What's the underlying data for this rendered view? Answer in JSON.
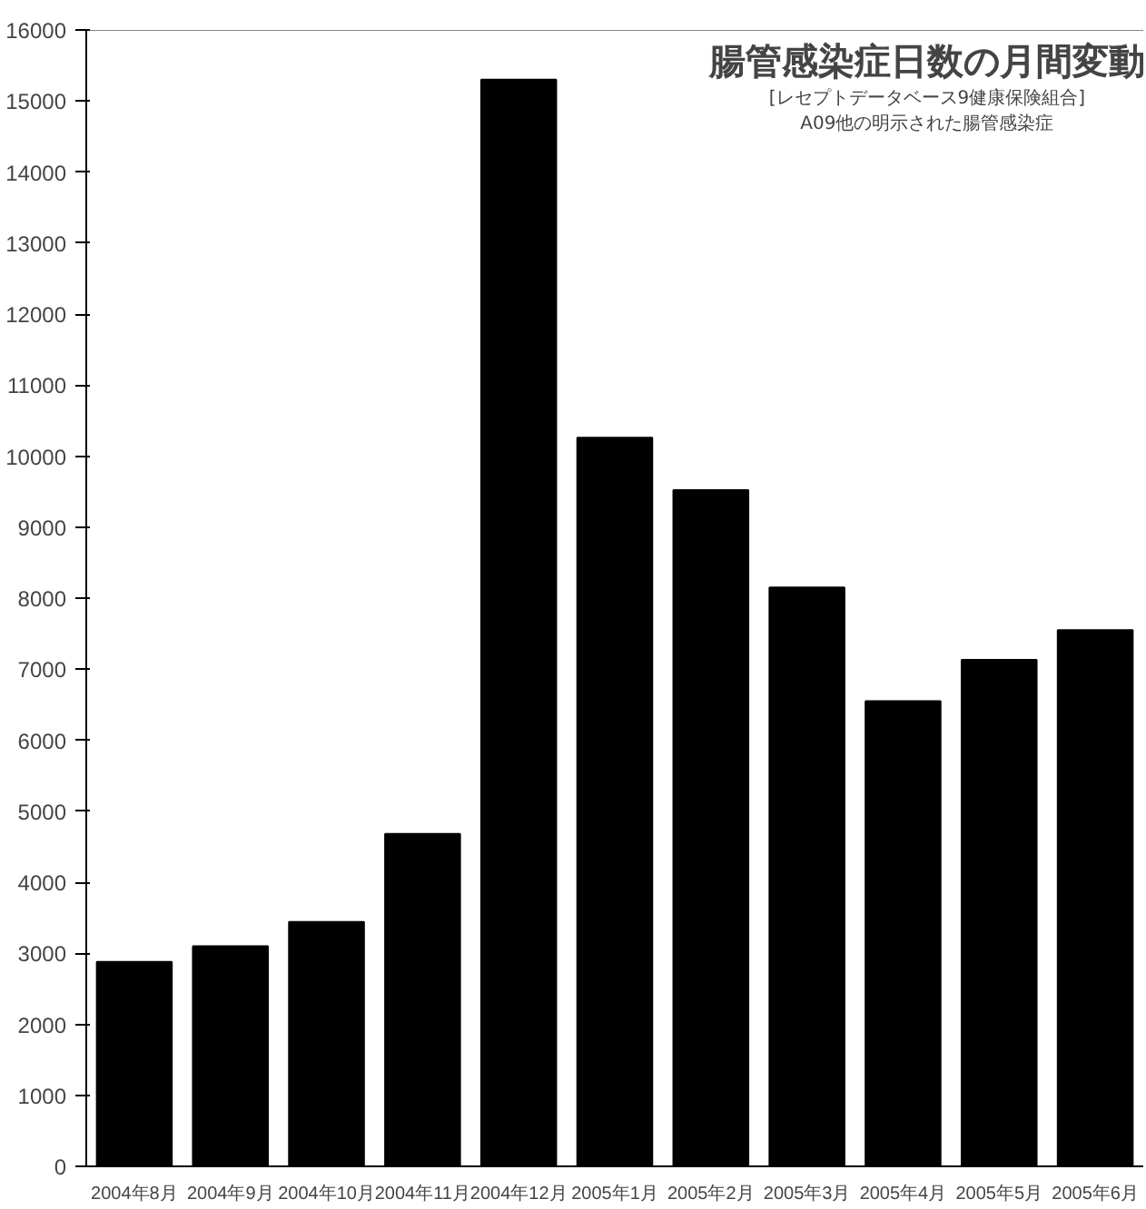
{
  "chart_data": {
    "type": "bar",
    "title": "腸管感染症日数の月間変動",
    "subtitle": "[レセプトデータベース9健康保険組合]",
    "annotations": [
      "A09他の明示された腸管感染症"
    ],
    "categories": [
      "2004年8月",
      "2004年9月",
      "2004年10月",
      "2004年11月",
      "2004年12月",
      "2005年1月",
      "2005年2月",
      "2005年3月",
      "2005年4月",
      "2005年5月",
      "2005年6月"
    ],
    "values": [
      2880,
      3100,
      3440,
      4680,
      15300,
      10260,
      9520,
      8150,
      6550,
      7130,
      7550
    ],
    "color": "#000000",
    "ylim": [
      0,
      16000
    ],
    "yticks": [
      0,
      1000,
      2000,
      3000,
      4000,
      5000,
      6000,
      7000,
      8000,
      9000,
      10000,
      11000,
      12000,
      13000,
      14000,
      15000,
      16000
    ],
    "grid": false,
    "legend": false
  }
}
